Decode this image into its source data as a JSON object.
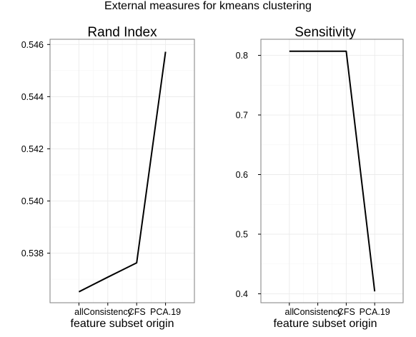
{
  "figure": {
    "title": "External measures for kmeans clustering"
  },
  "chart_data": [
    {
      "type": "line",
      "title": "Rand Index",
      "xlabel": "feature subset origin",
      "ylabel": "",
      "categories": [
        "all",
        "Consistency",
        "CFS",
        "PCA.19"
      ],
      "values": [
        0.53652,
        0.53708,
        0.53763,
        0.54572
      ],
      "ylim": [
        0.5361,
        0.5462
      ],
      "yticks": [
        0.538,
        0.54,
        0.542,
        0.544,
        0.546
      ],
      "ytick_labels": [
        "0.538",
        "0.540",
        "0.542",
        "0.544",
        "0.546"
      ],
      "grid": true
    },
    {
      "type": "line",
      "title": "Sensitivity",
      "xlabel": "feature subset origin",
      "ylabel": "",
      "categories": [
        "all",
        "Consistency",
        "CFS",
        "PCA.19"
      ],
      "values": [
        0.807,
        0.807,
        0.807,
        0.404
      ],
      "ylim": [
        0.385,
        0.827
      ],
      "yticks": [
        0.4,
        0.5,
        0.6,
        0.7,
        0.8
      ],
      "ytick_labels": [
        "0.4",
        "0.5",
        "0.6",
        "0.7",
        "0.8"
      ],
      "grid": true
    }
  ]
}
